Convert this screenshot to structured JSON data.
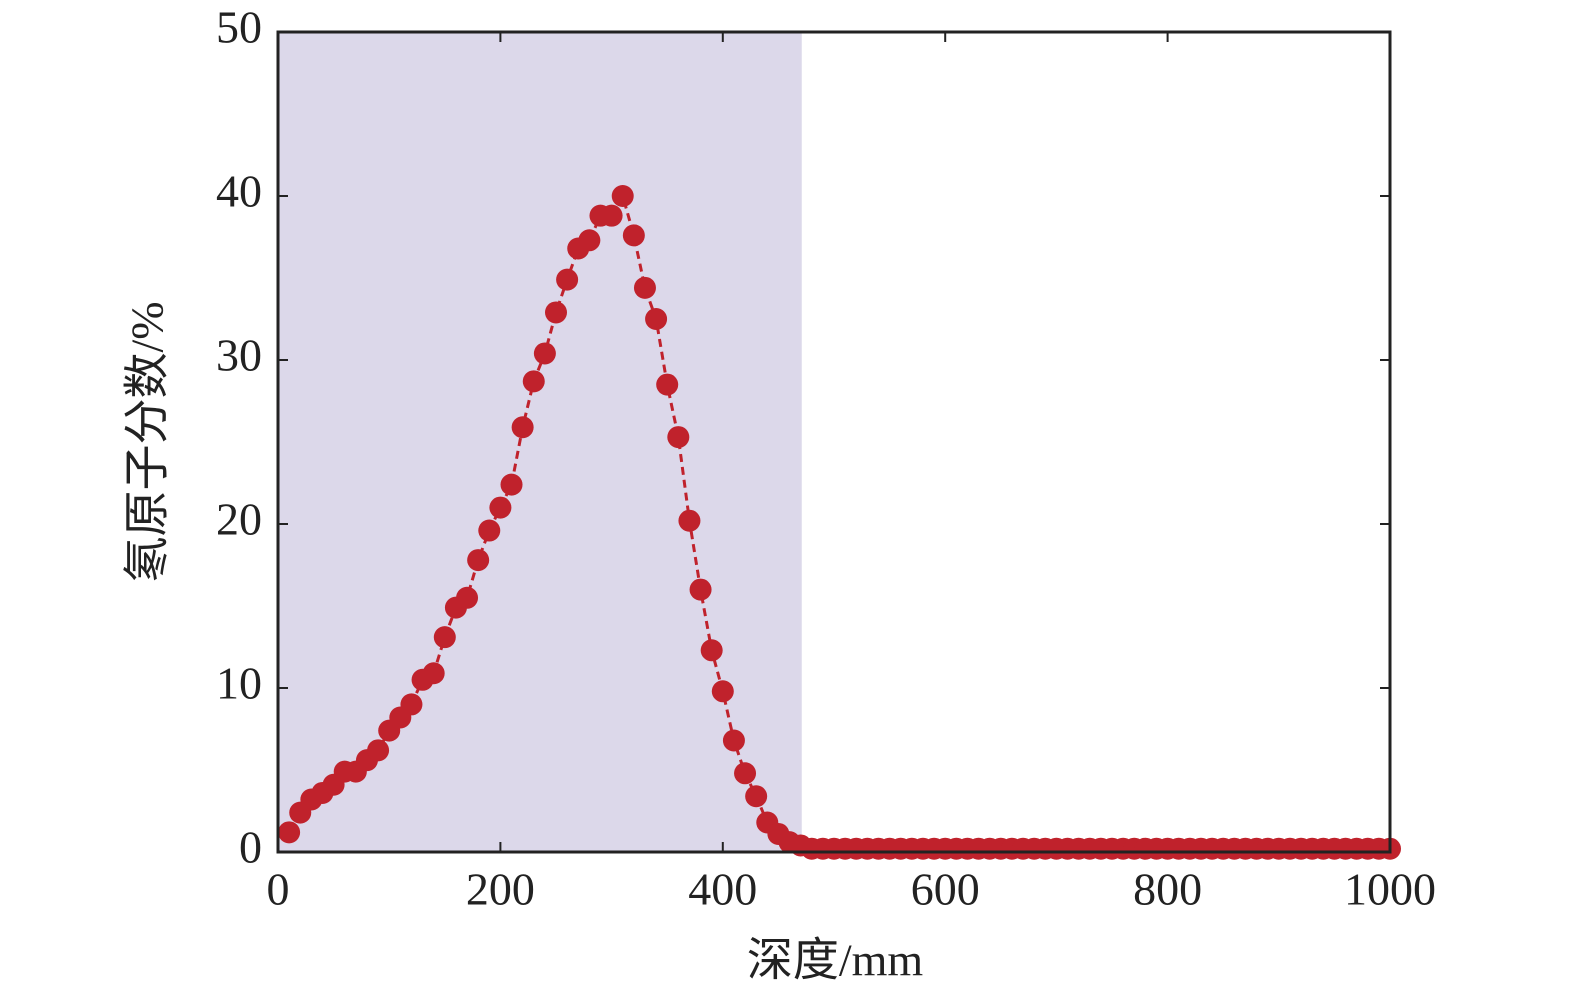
{
  "chart_data": {
    "type": "scatter",
    "x_label": "深度/mm",
    "y_label": "氡原子分数/%",
    "x": [
      10,
      20,
      30,
      40,
      50,
      60,
      70,
      80,
      90,
      100,
      110,
      120,
      130,
      140,
      150,
      160,
      170,
      180,
      190,
      200,
      210,
      220,
      230,
      240,
      250,
      260,
      270,
      280,
      290,
      300,
      310,
      320,
      330,
      340,
      350,
      360,
      370,
      380,
      390,
      400,
      410,
      420,
      430,
      440,
      450,
      460,
      470,
      480,
      490,
      500,
      510,
      520,
      530,
      540,
      550,
      560,
      570,
      580,
      590,
      600,
      610,
      620,
      630,
      640,
      650,
      660,
      670,
      680,
      690,
      700,
      710,
      720,
      730,
      740,
      750,
      760,
      770,
      780,
      790,
      800,
      810,
      820,
      830,
      840,
      850,
      860,
      870,
      880,
      890,
      900,
      910,
      920,
      930,
      940,
      950,
      960,
      970,
      980,
      990,
      1000
    ],
    "series": [
      {
        "color": "#c0222c",
        "values": [
          1.2,
          2.4,
          3.2,
          3.6,
          4.1,
          4.9,
          4.9,
          5.6,
          6.2,
          7.4,
          8.2,
          9.0,
          10.5,
          10.9,
          13.1,
          14.9,
          15.5,
          17.8,
          19.6,
          21.0,
          22.4,
          25.9,
          28.7,
          30.4,
          32.9,
          34.9,
          36.8,
          37.3,
          38.8,
          38.8,
          40.0,
          37.6,
          34.4,
          32.5,
          28.5,
          25.3,
          20.2,
          16.0,
          12.3,
          9.8,
          6.8,
          4.8,
          3.4,
          1.8,
          1.1,
          0.6,
          0.4,
          0.2,
          0.2,
          0.2,
          0.2,
          0.2,
          0.2,
          0.2,
          0.2,
          0.2,
          0.2,
          0.2,
          0.2,
          0.2,
          0.2,
          0.2,
          0.2,
          0.2,
          0.2,
          0.2,
          0.2,
          0.2,
          0.2,
          0.2,
          0.2,
          0.2,
          0.2,
          0.2,
          0.2,
          0.2,
          0.2,
          0.2,
          0.2,
          0.2,
          0.2,
          0.2,
          0.2,
          0.2,
          0.2,
          0.2,
          0.2,
          0.2,
          0.2,
          0.2,
          0.2,
          0.2,
          0.2,
          0.2,
          0.2,
          0.2,
          0.2,
          0.2,
          0.2,
          0.2
        ]
      }
    ],
    "shaded_region": {
      "xlim": [
        0,
        471
      ],
      "color": "#dcd8ea"
    },
    "xlim": [
      0,
      1000
    ],
    "xticks": [
      0,
      200,
      400,
      600,
      800,
      1000
    ],
    "ylim": [
      0,
      50
    ],
    "yticks": [
      0,
      10,
      20,
      30,
      40,
      50
    ],
    "grid": false
  }
}
